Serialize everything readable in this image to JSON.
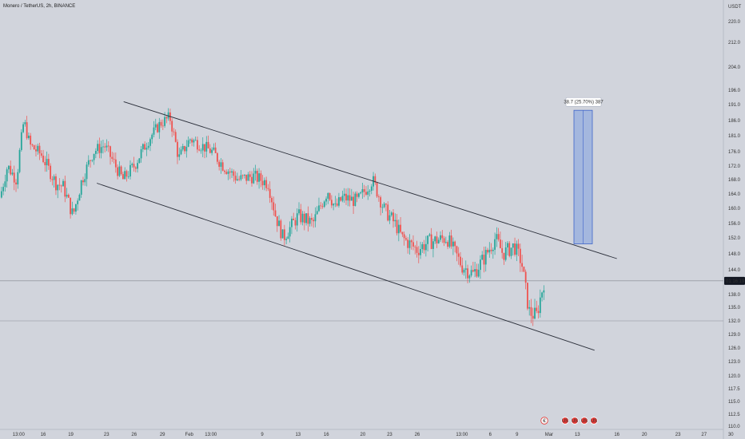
{
  "header": {
    "symbol_line": "Monero / TetherUS, 2h, BINANCE"
  },
  "colors": {
    "background": "#d1d4dc",
    "up": "#26a69a",
    "down": "#ef5350",
    "trendline": "#2a2e39",
    "projection_fill": "#7f9ee0",
    "projection_stroke": "#3d63c9",
    "price_label_bg": "#131722",
    "event_badge_red": "#e53935"
  },
  "chart_data": {
    "type": "candlestick",
    "title": "",
    "xlabel": "",
    "ylabel": "",
    "y_axis_currency": "USDT",
    "ylim": [
      110,
      224
    ],
    "price_ticks": [
      "220.0",
      "212.0",
      "204.0",
      "196.0",
      "191.0",
      "186.0",
      "181.0",
      "176.0",
      "172.0",
      "168.0",
      "164.0",
      "160.0",
      "156.0",
      "152.0",
      "148.0",
      "144.0",
      "141.0",
      "138.0",
      "135.0",
      "132.0",
      "129.0",
      "126.0",
      "123.0",
      "120.0",
      "117.5",
      "115.0",
      "112.5",
      "110.0"
    ],
    "time_ticks": [
      "13:00",
      "16",
      "19",
      "23",
      "26",
      "29",
      "Feb",
      "13:00",
      "9",
      "13",
      "16",
      "20",
      "23",
      "26",
      "13:00",
      "6",
      "9",
      "Mar",
      "13",
      "16",
      "20",
      "23",
      "27",
      "30"
    ],
    "last_price_countdown": "01:16:19",
    "last_price": 141.4,
    "reference_level": 132.0,
    "projection": {
      "label": "38.7 (25.70%) 387",
      "from_price": 150.5,
      "to_price": 189.2
    },
    "channel": {
      "upper": [
        {
          "x": 0.166,
          "price": 192.0
        },
        {
          "x": 0.828,
          "price": 146.8
        }
      ],
      "lower": [
        {
          "x": 0.13,
          "price": 167.0
        },
        {
          "x": 0.798,
          "price": 125.5
        }
      ]
    },
    "path_anchors": [
      [
        0,
        163
      ],
      [
        0.01,
        172
      ],
      [
        0.022,
        168
      ],
      [
        0.032,
        186
      ],
      [
        0.04,
        178
      ],
      [
        0.056,
        175
      ],
      [
        0.075,
        167
      ],
      [
        0.085,
        166
      ],
      [
        0.098,
        158
      ],
      [
        0.11,
        168
      ],
      [
        0.125,
        176
      ],
      [
        0.14,
        178
      ],
      [
        0.165,
        168
      ],
      [
        0.18,
        172
      ],
      [
        0.2,
        180
      ],
      [
        0.215,
        185
      ],
      [
        0.228,
        187
      ],
      [
        0.24,
        174
      ],
      [
        0.255,
        180
      ],
      [
        0.27,
        178
      ],
      [
        0.285,
        176
      ],
      [
        0.3,
        172
      ],
      [
        0.32,
        168
      ],
      [
        0.34,
        169
      ],
      [
        0.36,
        167
      ],
      [
        0.37,
        158
      ],
      [
        0.38,
        152
      ],
      [
        0.39,
        155
      ],
      [
        0.4,
        158
      ],
      [
        0.42,
        156
      ],
      [
        0.44,
        165
      ],
      [
        0.45,
        160
      ],
      [
        0.46,
        163
      ],
      [
        0.48,
        162
      ],
      [
        0.5,
        168
      ],
      [
        0.515,
        160
      ],
      [
        0.53,
        156
      ],
      [
        0.54,
        152
      ],
      [
        0.56,
        149
      ],
      [
        0.575,
        151
      ],
      [
        0.6,
        152
      ],
      [
        0.62,
        145
      ],
      [
        0.635,
        143
      ],
      [
        0.65,
        147
      ],
      [
        0.665,
        152
      ],
      [
        0.675,
        148
      ],
      [
        0.69,
        150
      ],
      [
        0.7,
        146
      ],
      [
        0.71,
        134
      ],
      [
        0.72,
        133
      ],
      [
        0.73,
        141
      ]
    ],
    "event_badges": [
      "€",
      "US",
      "US",
      "US",
      "US"
    ]
  }
}
